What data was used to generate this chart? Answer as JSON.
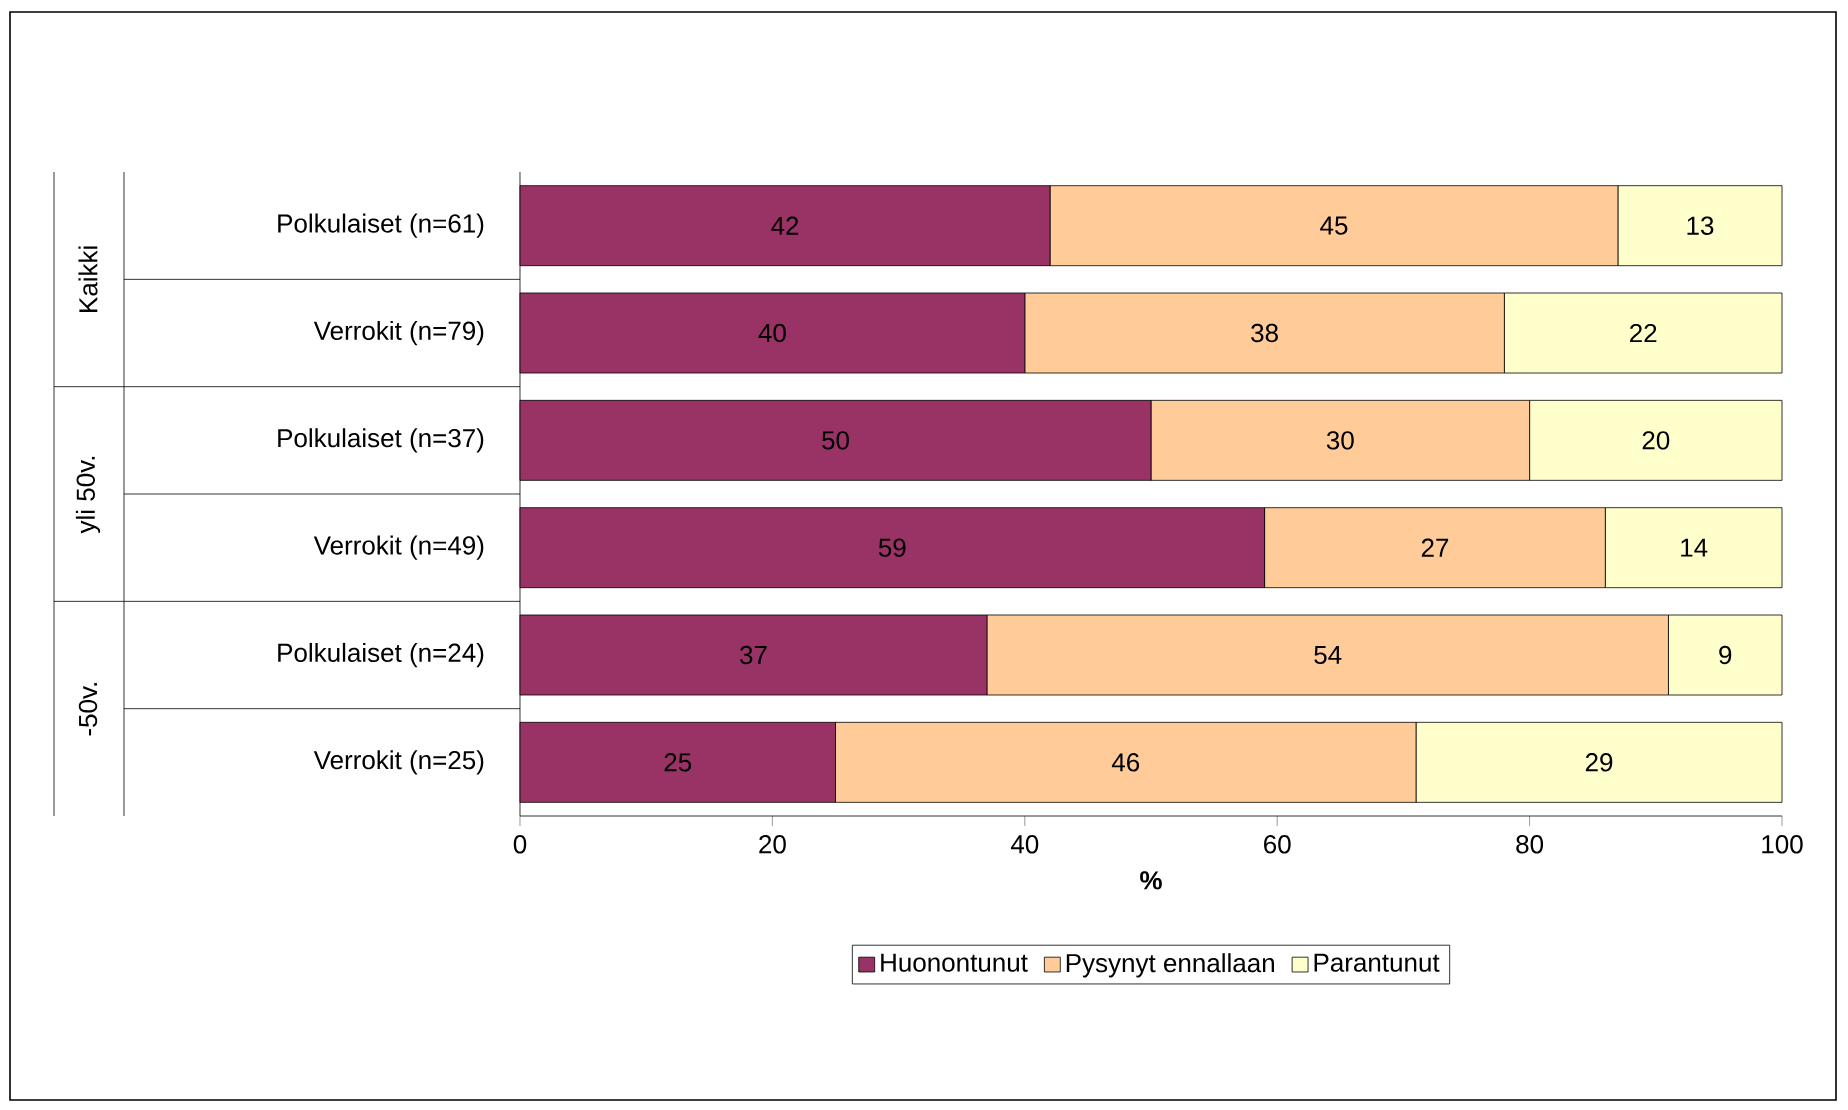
{
  "chart_data": {
    "type": "bar",
    "orientation": "horizontal",
    "stacked": true,
    "data_labels": true,
    "legend": "bottom",
    "grid": false,
    "xlabel": "%",
    "categories": [
      "Polkulaiset (n=61)",
      "Verrokit (n=79)",
      "Polkulaiset (n=37)",
      "Verrokit (n=49)",
      "Polkulaiset (n=24)",
      "Verrokit (n=25)"
    ],
    "annotations": [
      "Kaikki",
      "yli 50v.",
      "-50v."
    ],
    "xlim": [
      0,
      100
    ],
    "xticks": [
      0,
      20,
      40,
      60,
      80,
      100
    ],
    "series": [
      {
        "name": "Huonontunut",
        "color": "#993366",
        "values": [
          42,
          40,
          50,
          59,
          37,
          25
        ]
      },
      {
        "name": "Pysynyt ennallaan",
        "color": "#ffcc99",
        "values": [
          45,
          38,
          30,
          27,
          54,
          46
        ]
      },
      {
        "name": "Parantunut",
        "color": "#ffffcc",
        "values": [
          13,
          22,
          20,
          14,
          9,
          29
        ]
      }
    ]
  }
}
